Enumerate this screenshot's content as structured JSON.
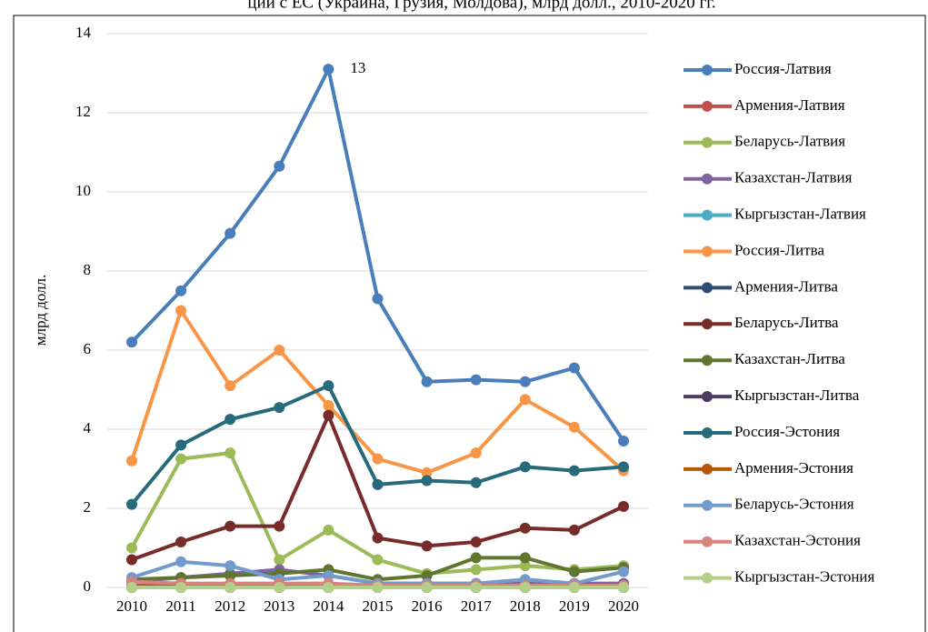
{
  "chart_data": {
    "type": "line",
    "title": "ции с ЕС (Украина, Грузия, Молдова), млрд долл., 2010-2020 гг.",
    "y_label": "млрд долл.",
    "annotation": "13",
    "categories": [
      "2010",
      "2011",
      "2012",
      "2013",
      "2014",
      "2015",
      "2016",
      "2017",
      "2018",
      "2019",
      "2020"
    ],
    "ylim": [
      0,
      14
    ],
    "yticks": [
      0,
      2,
      4,
      6,
      8,
      10,
      12,
      14
    ],
    "grid": true,
    "legend": "right",
    "series": [
      {
        "name": "Россия-Латвия",
        "color": "#4a7ebb",
        "values": [
          6.2,
          7.5,
          8.95,
          10.65,
          13.1,
          7.3,
          5.2,
          5.25,
          5.2,
          5.55,
          3.7
        ]
      },
      {
        "name": "Армения-Латвия",
        "color": "#c0504d",
        "values": [
          0.05,
          0.05,
          0.05,
          0.05,
          0.05,
          0.05,
          0.05,
          0.05,
          0.05,
          0.05,
          0.05
        ]
      },
      {
        "name": "Беларусь-Латвия",
        "color": "#9bbb59",
        "values": [
          1.0,
          3.25,
          3.4,
          0.7,
          1.45,
          0.7,
          0.35,
          0.45,
          0.55,
          0.45,
          0.55
        ]
      },
      {
        "name": "Казахстан-Латвия",
        "color": "#8064a2",
        "values": [
          0.15,
          0.25,
          0.35,
          0.45,
          0.3,
          0.1,
          0.1,
          0.1,
          0.1,
          0.1,
          0.1
        ]
      },
      {
        "name": "Кыргызстан-Латвия",
        "color": "#4bacc6",
        "values": [
          0,
          0,
          0,
          0,
          0,
          0,
          0,
          0,
          0,
          0,
          0
        ]
      },
      {
        "name": "Россия-Литва",
        "color": "#f79646",
        "values": [
          3.2,
          7.0,
          5.1,
          6.0,
          4.6,
          3.25,
          2.9,
          3.4,
          4.75,
          4.05,
          2.95
        ]
      },
      {
        "name": "Армения-Литва",
        "color": "#2c4d75",
        "values": [
          0,
          0,
          0,
          0,
          0,
          0,
          0,
          0,
          0,
          0,
          0
        ]
      },
      {
        "name": "Беларусь-Литва",
        "color": "#772c2a",
        "values": [
          0.7,
          1.15,
          1.55,
          1.55,
          4.35,
          1.25,
          1.05,
          1.15,
          1.5,
          1.45,
          2.05
        ]
      },
      {
        "name": "Казахстан-Литва",
        "color": "#5f7530",
        "values": [
          0.2,
          0.25,
          0.3,
          0.35,
          0.45,
          0.2,
          0.3,
          0.75,
          0.75,
          0.4,
          0.5
        ]
      },
      {
        "name": "Кыргызстан-Литва",
        "color": "#4d3b62",
        "values": [
          0,
          0,
          0,
          0,
          0,
          0,
          0,
          0,
          0,
          0,
          0.05
        ]
      },
      {
        "name": "Россия-Эстония",
        "color": "#276a7c",
        "values": [
          2.1,
          3.6,
          4.25,
          4.55,
          5.1,
          2.6,
          2.7,
          2.65,
          3.05,
          2.95,
          3.05
        ]
      },
      {
        "name": "Армения-Эстония",
        "color": "#b65708",
        "values": [
          0,
          0,
          0,
          0,
          0,
          0,
          0,
          0,
          0,
          0,
          0
        ]
      },
      {
        "name": "Беларусь-Эстония",
        "color": "#729aca",
        "values": [
          0.25,
          0.65,
          0.55,
          0.2,
          0.3,
          0.1,
          0.1,
          0.1,
          0.2,
          0.1,
          0.4
        ]
      },
      {
        "name": "Казахстан-Эстония",
        "color": "#d9837f",
        "values": [
          0.15,
          0.1,
          0.1,
          0.1,
          0.1,
          0.05,
          0.05,
          0.05,
          0.05,
          0.05,
          0.05
        ]
      },
      {
        "name": "Кыргызстан-Эстония",
        "color": "#b3cf8a",
        "values": [
          0,
          0,
          0,
          0,
          0,
          0,
          0,
          0,
          0,
          0,
          0
        ]
      }
    ]
  }
}
